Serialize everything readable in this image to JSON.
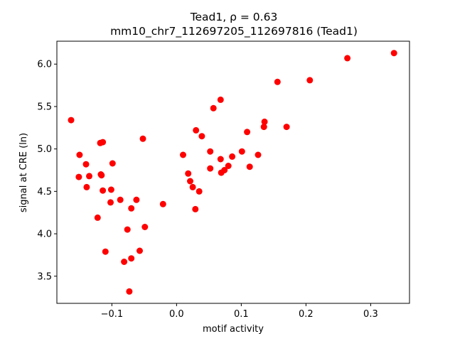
{
  "chart_data": {
    "type": "scatter",
    "title_line1": "Tead1, ρ = 0.63",
    "title_line2": "mm10_chr7_112697205_112697816 (Tead1)",
    "xlabel": "motif activity",
    "ylabel": "signal at CRE (ln)",
    "xlim": [
      -0.185,
      0.36
    ],
    "ylim": [
      3.18,
      6.27
    ],
    "xticks": [
      -0.1,
      0.0,
      0.1,
      0.2,
      0.3
    ],
    "xtick_labels": [
      "−0.1",
      "0.0",
      "0.1",
      "0.2",
      "0.3"
    ],
    "yticks": [
      3.5,
      4.0,
      4.5,
      5.0,
      5.5,
      6.0
    ],
    "ytick_labels": [
      "3.5",
      "4.0",
      "4.5",
      "5.0",
      "5.5",
      "6.0"
    ],
    "grid": false,
    "marker_color": "#ff0000",
    "points": [
      {
        "x": -0.163,
        "y": 5.34
      },
      {
        "x": -0.15,
        "y": 4.93
      },
      {
        "x": -0.151,
        "y": 4.67
      },
      {
        "x": -0.14,
        "y": 4.82
      },
      {
        "x": -0.139,
        "y": 4.55
      },
      {
        "x": -0.135,
        "y": 4.68
      },
      {
        "x": -0.122,
        "y": 4.19
      },
      {
        "x": -0.118,
        "y": 5.07
      },
      {
        "x": -0.114,
        "y": 5.08
      },
      {
        "x": -0.117,
        "y": 4.7
      },
      {
        "x": -0.116,
        "y": 4.69
      },
      {
        "x": -0.114,
        "y": 4.51
      },
      {
        "x": -0.11,
        "y": 3.79
      },
      {
        "x": -0.099,
        "y": 4.83
      },
      {
        "x": -0.101,
        "y": 4.52
      },
      {
        "x": -0.102,
        "y": 4.37
      },
      {
        "x": -0.087,
        "y": 4.4
      },
      {
        "x": -0.081,
        "y": 3.67
      },
      {
        "x": -0.076,
        "y": 4.05
      },
      {
        "x": -0.073,
        "y": 3.32
      },
      {
        "x": -0.07,
        "y": 4.3
      },
      {
        "x": -0.07,
        "y": 3.71
      },
      {
        "x": -0.062,
        "y": 4.4
      },
      {
        "x": -0.057,
        "y": 3.8
      },
      {
        "x": -0.052,
        "y": 5.12
      },
      {
        "x": -0.049,
        "y": 4.08
      },
      {
        "x": -0.021,
        "y": 4.35
      },
      {
        "x": 0.01,
        "y": 4.93
      },
      {
        "x": 0.018,
        "y": 4.71
      },
      {
        "x": 0.021,
        "y": 4.62
      },
      {
        "x": 0.025,
        "y": 4.55
      },
      {
        "x": 0.03,
        "y": 5.22
      },
      {
        "x": 0.029,
        "y": 4.29
      },
      {
        "x": 0.035,
        "y": 4.5
      },
      {
        "x": 0.039,
        "y": 5.15
      },
      {
        "x": 0.052,
        "y": 4.97
      },
      {
        "x": 0.052,
        "y": 4.77
      },
      {
        "x": 0.057,
        "y": 5.48
      },
      {
        "x": 0.068,
        "y": 5.58
      },
      {
        "x": 0.068,
        "y": 4.88
      },
      {
        "x": 0.069,
        "y": 4.72
      },
      {
        "x": 0.074,
        "y": 4.75
      },
      {
        "x": 0.08,
        "y": 4.8
      },
      {
        "x": 0.086,
        "y": 4.91
      },
      {
        "x": 0.101,
        "y": 4.97
      },
      {
        "x": 0.109,
        "y": 5.2
      },
      {
        "x": 0.113,
        "y": 4.79
      },
      {
        "x": 0.126,
        "y": 4.93
      },
      {
        "x": 0.136,
        "y": 5.32
      },
      {
        "x": 0.135,
        "y": 5.26
      },
      {
        "x": 0.156,
        "y": 5.79
      },
      {
        "x": 0.17,
        "y": 5.26
      },
      {
        "x": 0.206,
        "y": 5.81
      },
      {
        "x": 0.264,
        "y": 6.07
      },
      {
        "x": 0.336,
        "y": 6.13
      }
    ]
  }
}
